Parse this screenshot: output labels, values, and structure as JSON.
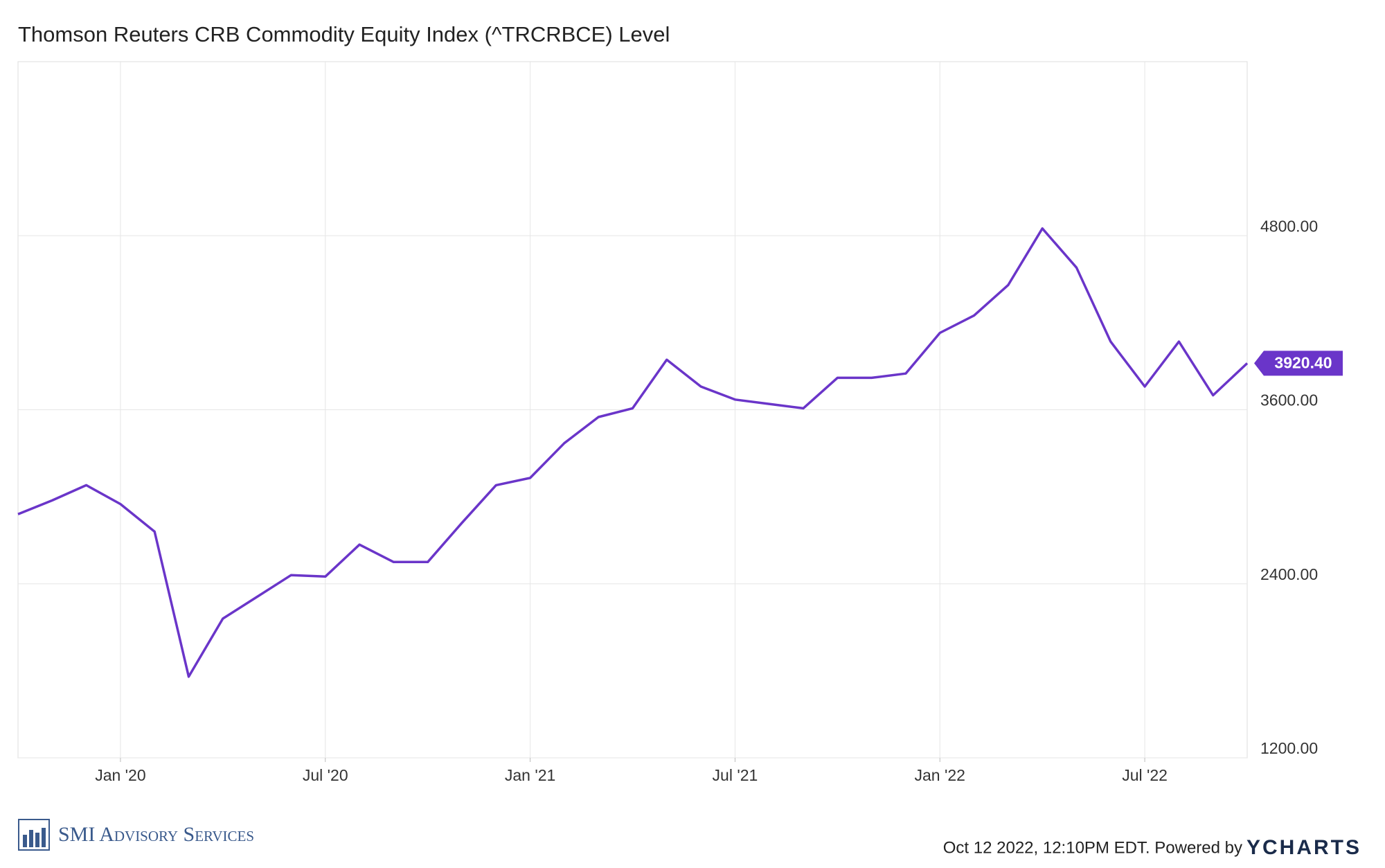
{
  "chart_data": {
    "type": "line",
    "title": "Thomson Reuters CRB Commodity Equity Index (^TRCRBCE) Level",
    "x": [
      "2019-10",
      "2019-11",
      "2019-12",
      "2020-01",
      "2020-02",
      "2020-03",
      "2020-04",
      "2020-05",
      "2020-06",
      "2020-07",
      "2020-08",
      "2020-09",
      "2020-10",
      "2020-11",
      "2020-12",
      "2021-01",
      "2021-02",
      "2021-03",
      "2021-04",
      "2021-05",
      "2021-06",
      "2021-07",
      "2021-08",
      "2021-09",
      "2021-10",
      "2021-11",
      "2021-12",
      "2022-01",
      "2022-02",
      "2022-03",
      "2022-04",
      "2022-05",
      "2022-06",
      "2022-07",
      "2022-08",
      "2022-09",
      "2022-10"
    ],
    "values": [
      2880,
      2975,
      3080,
      2950,
      2760,
      1760,
      2160,
      2310,
      2460,
      2450,
      2670,
      2550,
      2550,
      2820,
      3080,
      3130,
      3370,
      3550,
      3610,
      3945,
      3760,
      3670,
      3640,
      3610,
      3820,
      3820,
      3850,
      4130,
      4250,
      4460,
      4850,
      4580,
      4070,
      3760,
      4070,
      3700,
      3920.4
    ],
    "value_labels": [
      null,
      null,
      null,
      null,
      null,
      null,
      null,
      null,
      null,
      null,
      null,
      null,
      null,
      null,
      null,
      null,
      null,
      null,
      null,
      null,
      null,
      null,
      null,
      null,
      null,
      null,
      null,
      null,
      null,
      null,
      null,
      null,
      null,
      null,
      null,
      null,
      "3920.40"
    ],
    "color": "#6a35c9",
    "xlim": [
      "2019-10",
      "2022-10"
    ],
    "xticks": [
      {
        "value": "2020-01",
        "label": "Jan '20"
      },
      {
        "value": "2020-07",
        "label": "Jul '20"
      },
      {
        "value": "2021-01",
        "label": "Jan '21"
      },
      {
        "value": "2021-07",
        "label": "Jul '21"
      },
      {
        "value": "2022-01",
        "label": "Jan '22"
      },
      {
        "value": "2022-07",
        "label": "Jul '22"
      }
    ],
    "ylim": [
      1200,
      6000
    ],
    "yticks": [
      {
        "value": 1200,
        "label": "1200.00"
      },
      {
        "value": 2400,
        "label": "2400.00"
      },
      {
        "value": 3600,
        "label": "3600.00"
      },
      {
        "value": 4800,
        "label": "4800.00"
      }
    ],
    "grid": true
  },
  "footer": {
    "logo": "SMI Advisory Services",
    "timestamp": "Oct 12 2022, 12:10PM EDT. Powered by",
    "brand": "YCHARTS"
  }
}
